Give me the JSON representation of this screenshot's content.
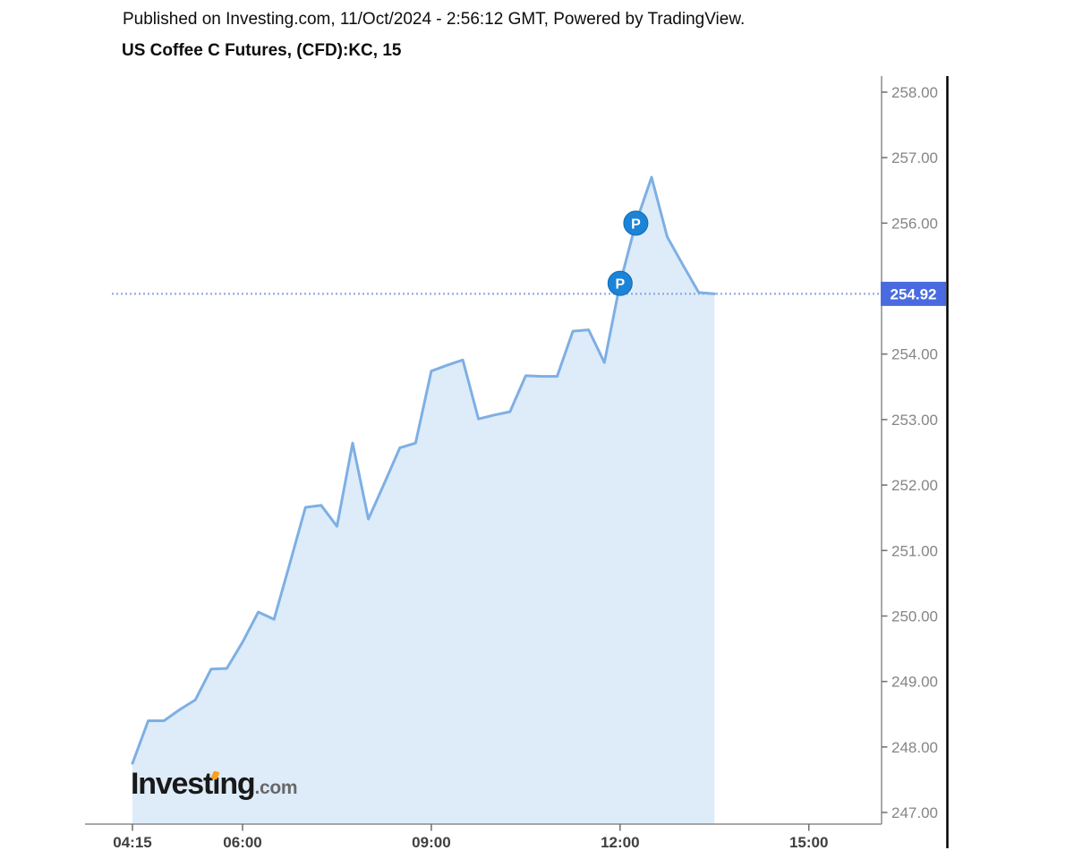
{
  "header": {
    "published": "Published on Investing.com, 11/Oct/2024 - 2:56:12 GMT, Powered by TradingView.",
    "title": "US Coffee C Futures, (CFD):KC, 15"
  },
  "logo": {
    "alt": "Investing.com",
    "bold_part": "Invest",
    "dotless_i": "ı",
    "ng_part": "ng",
    "suffix": ".com"
  },
  "colors": {
    "line": "#7eafe4",
    "fill": "#ddecf8",
    "dotted_line": "#8d9ce8",
    "badge_bg": "#4a6bdf",
    "badge_text": "#ffffff",
    "marker_bg": "#1c84d7",
    "marker_border": "#0e69b2",
    "marker_text": "#ffffff",
    "logo_accent": "#f9a11b",
    "plot_border": "#8c8c8c",
    "axis_divider": "#000000",
    "y_label": "#858585",
    "x_label": "#3f3f3f"
  },
  "chart_data": {
    "type": "area",
    "title": "US Coffee C Futures, (CFD):KC, 15",
    "symbol": "KC",
    "interval_minutes": 15,
    "grid": false,
    "legend_position": "none",
    "ylim": [
      246.85,
      258.25
    ],
    "x": [
      "04:15",
      "04:30",
      "04:45",
      "05:00",
      "05:15",
      "05:30",
      "05:45",
      "06:00",
      "06:15",
      "06:30",
      "06:45",
      "07:00",
      "07:15",
      "07:30",
      "07:45",
      "08:00",
      "08:15",
      "08:30",
      "08:45",
      "09:00",
      "09:15",
      "09:30",
      "09:45",
      "10:00",
      "10:15",
      "10:30",
      "10:45",
      "11:00",
      "11:15",
      "11:30",
      "11:45",
      "12:00",
      "12:15",
      "12:30",
      "12:45",
      "13:00",
      "13:15",
      "13:30"
    ],
    "values": [
      247.75,
      248.4,
      248.4,
      248.57,
      248.72,
      249.19,
      249.2,
      249.6,
      250.06,
      249.95,
      250.8,
      251.66,
      251.69,
      251.37,
      252.64,
      251.48,
      252.02,
      252.57,
      252.64,
      253.74,
      253.83,
      253.91,
      253.01,
      253.07,
      253.12,
      253.67,
      253.66,
      253.66,
      254.35,
      254.37,
      253.87,
      255.08,
      256.0,
      256.7,
      255.79,
      255.36,
      254.94,
      254.92
    ],
    "current_price": {
      "value": 254.92,
      "label": "254.92"
    },
    "y_ticks": [
      {
        "value": 258,
        "label": "258.00"
      },
      {
        "value": 257,
        "label": "257.00"
      },
      {
        "value": 256,
        "label": "256.00"
      },
      {
        "value": 254,
        "label": "254.00"
      },
      {
        "value": 253,
        "label": "253.00"
      },
      {
        "value": 252,
        "label": "252.00"
      },
      {
        "value": 251,
        "label": "251.00"
      },
      {
        "value": 250,
        "label": "250.00"
      },
      {
        "value": 249,
        "label": "249.00"
      },
      {
        "value": 248,
        "label": "248.00"
      },
      {
        "value": 247,
        "label": "247.00"
      }
    ],
    "x_ticks": [
      {
        "time": "04:15",
        "label": "04:15"
      },
      {
        "time": "06:00",
        "label": "06:00"
      },
      {
        "time": "09:00",
        "label": "09:00"
      },
      {
        "time": "12:00",
        "label": "12:00"
      },
      {
        "time": "15:00",
        "label": "15:00"
      }
    ],
    "markers": [
      {
        "time": "12:00",
        "value": 255.08,
        "label": "P"
      },
      {
        "time": "12:15",
        "value": 256.0,
        "label": "P"
      }
    ]
  }
}
